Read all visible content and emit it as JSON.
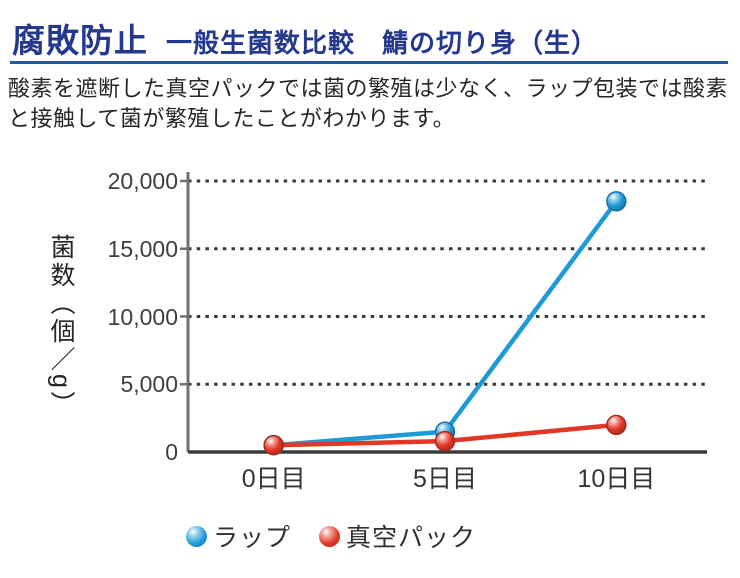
{
  "header": {
    "title_main": "腐敗防止",
    "title_sub": "一般生菌数比較　鯖の切り身（生）",
    "title_color": "#24388e",
    "underline_color": "#1e5ca6"
  },
  "description": {
    "text": "酸素を遮断した真空パックでは菌の繁殖は少なく、ラップ包装では酸素と接触して菌が繁殖したことがわかります。"
  },
  "chart_data": {
    "type": "line",
    "title": "腐敗防止　一般生菌数比較　鯖の切り身（生）",
    "ylabel": "菌数（個／g）",
    "xlabel": "",
    "categories": [
      "0日目",
      "5日目",
      "10日目"
    ],
    "series": [
      {
        "name": "ラップ",
        "color": "#1e9ad6",
        "values": [
          500,
          1500,
          18500
        ]
      },
      {
        "name": "真空パック",
        "color": "#e23726",
        "values": [
          500,
          800,
          2000
        ]
      }
    ],
    "ylim": [
      0,
      20000
    ],
    "ytick_step": 5000,
    "ytick_labels": [
      "0",
      "5,000",
      "10,000",
      "15,000",
      "20,000"
    ],
    "grid": "horizontal-dotted",
    "grid_color": "#3a3a3a",
    "axis_color": "#717171",
    "baseline_color": "#3b3b3b",
    "legend_position": "bottom"
  }
}
